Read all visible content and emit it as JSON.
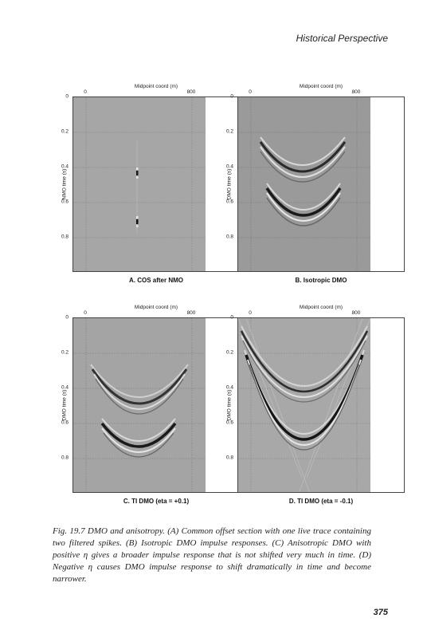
{
  "header": {
    "running_head": "Historical Perspective"
  },
  "panels": [
    {
      "id": "A",
      "title": "Midpoint coord (m)",
      "ylabel": "NMO time (s)",
      "caption": "A. COS after NMO",
      "x_ticks": [
        "0",
        "800"
      ],
      "y_ticks": [
        "0",
        "0.2",
        "0.4",
        "0.6",
        "0.8"
      ],
      "background": "#a6a6a6"
    },
    {
      "id": "B",
      "title": "Midpoint coord (m)",
      "ylabel": "DMO time (s)",
      "caption": "B. Isotropic DMO",
      "x_ticks": [
        "0",
        "800"
      ],
      "y_ticks": [
        "0",
        "0.2",
        "0.4",
        "0.6",
        "0.8"
      ],
      "background": "#9a9a9a"
    },
    {
      "id": "C",
      "title": "Midpoint coord (m)",
      "ylabel": "DMO time (s)",
      "caption": "C. TI DMO (eta = +0.1)",
      "x_ticks": [
        "0",
        "800"
      ],
      "y_ticks": [
        "0",
        "0.2",
        "0.4",
        "0.6",
        "0.8"
      ],
      "background": "#a4a4a4"
    },
    {
      "id": "D",
      "title": "Midpoint coord (m)",
      "ylabel": "DMO time (s)",
      "caption": "D. TI DMO (eta = -0.1)",
      "x_ticks": [
        "0",
        "800"
      ],
      "y_ticks": [
        "0",
        "0.2",
        "0.4",
        "0.6",
        "0.8"
      ],
      "background": "#a8a8a8"
    }
  ],
  "figure_caption": "Fig. 19.7 DMO and anisotropy. (A) Common offset section with one live trace containing two filtered spikes. (B) Isotropic DMO impulse responses. (C) Anisotropic DMO with positive η gives a broader impulse response that is not shifted very much in time. (D) Negative η causes DMO impulse response to shift dramatically in time and become narrower.",
  "page_number": "375"
}
